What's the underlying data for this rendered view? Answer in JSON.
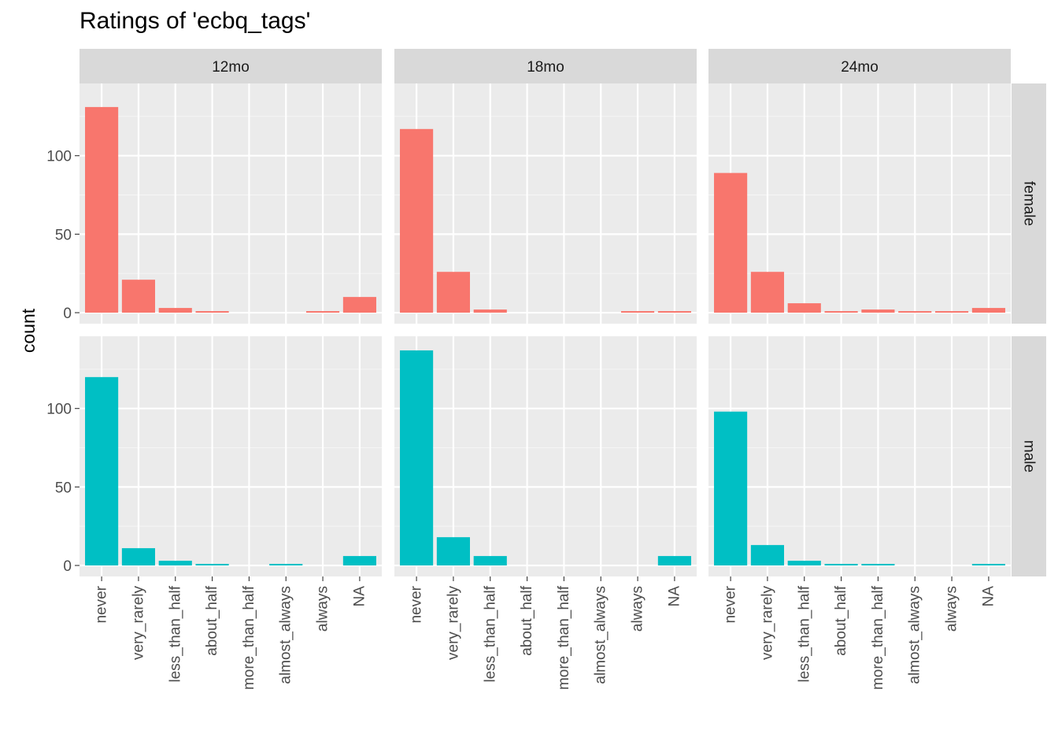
{
  "title": "Ratings of 'ecbq_tags'",
  "chart_data": {
    "type": "bar",
    "title": "Ratings of 'ecbq_tags'",
    "xlabel": "",
    "ylabel": "count",
    "ylim": [
      -7,
      146
    ],
    "yticks": [
      0,
      50,
      100
    ],
    "grid": true,
    "legend": "none",
    "categories": [
      "never",
      "very_rarely",
      "less_than_half",
      "about_half",
      "more_than_half",
      "almost_always",
      "always",
      "NA"
    ],
    "col_facets": [
      "12mo",
      "18mo",
      "24mo"
    ],
    "row_facets": [
      "female",
      "male"
    ],
    "colors": {
      "female": "#F8766D",
      "male": "#00BFC4"
    },
    "panels": [
      {
        "col": "12mo",
        "row": "female",
        "values": [
          131,
          21,
          3,
          1,
          0,
          0,
          1,
          10
        ]
      },
      {
        "col": "18mo",
        "row": "female",
        "values": [
          117,
          26,
          2,
          0,
          0,
          0,
          1,
          1
        ]
      },
      {
        "col": "24mo",
        "row": "female",
        "values": [
          89,
          26,
          6,
          1,
          2,
          1,
          1,
          3
        ]
      },
      {
        "col": "12mo",
        "row": "male",
        "values": [
          120,
          11,
          3,
          1,
          0,
          1,
          0,
          6
        ]
      },
      {
        "col": "18mo",
        "row": "male",
        "values": [
          137,
          18,
          6,
          0,
          0,
          0,
          0,
          6
        ]
      },
      {
        "col": "24mo",
        "row": "male",
        "values": [
          98,
          13,
          3,
          1,
          1,
          0,
          0,
          1
        ]
      }
    ]
  }
}
